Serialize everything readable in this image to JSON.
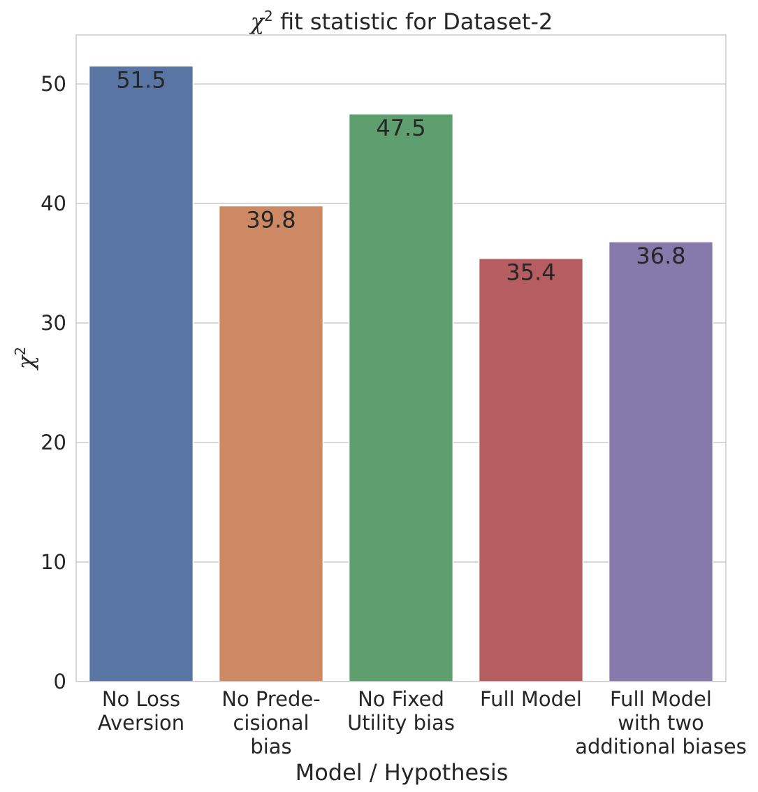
{
  "chart_data": {
    "type": "bar",
    "title_prefix": "χ",
    "title_sup": "2",
    "title_suffix": " fit statistic for Dataset-2",
    "xlabel": "Model / Hypothesis",
    "ylabel": "χ",
    "ylabel_sup": "2",
    "ylim": [
      0,
      54.1
    ],
    "yticks": [
      0,
      10,
      20,
      30,
      40,
      50
    ],
    "grid": true,
    "categories": [
      [
        "No Loss",
        "Aversion"
      ],
      [
        "No Prede-",
        "cisional",
        "bias"
      ],
      [
        "No Fixed",
        "Utility bias"
      ],
      [
        "Full Model"
      ],
      [
        "Full Model",
        "with two",
        "additional biases"
      ]
    ],
    "values": [
      51.5,
      39.8,
      47.5,
      35.4,
      36.8
    ],
    "value_labels": [
      "51.5",
      "39.8",
      "47.5",
      "35.4",
      "36.8"
    ],
    "colors": [
      "#5875a4",
      "#cc8963",
      "#5f9e6e",
      "#b55d60",
      "#857aab"
    ]
  }
}
